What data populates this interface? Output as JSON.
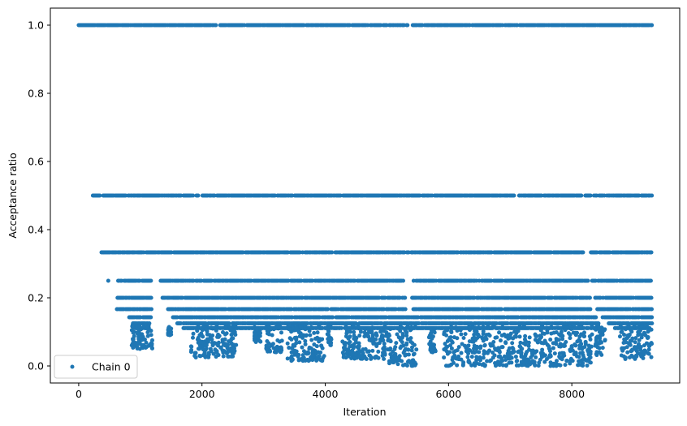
{
  "chart_data": {
    "type": "scatter",
    "xlabel": "Iteration",
    "ylabel": "Acceptance ratio",
    "xlim": [
      -460,
      9750
    ],
    "ylim": [
      -0.05,
      1.05
    ],
    "xticks": [
      0,
      2000,
      4000,
      6000,
      8000
    ],
    "yticks": [
      0.0,
      0.2,
      0.4,
      0.6,
      0.8,
      1.0
    ],
    "xtick_labels": [
      "0",
      "2000",
      "4000",
      "6000",
      "8000"
    ],
    "ytick_labels": [
      "0.0",
      "0.2",
      "0.4",
      "0.6",
      "0.8",
      "1.0"
    ],
    "grid": false,
    "legend_position": "lower-left",
    "series": [
      {
        "name": "Chain 0",
        "color": "#1f77b4",
        "marker": "circle",
        "levels": [
          {
            "y": 1.0,
            "segments": [
              [
                0,
                5340
              ],
              [
                5420,
                9300
              ]
            ]
          },
          {
            "y": 0.5,
            "segments": [
              [
                230,
                8160
              ],
              [
                8220,
                9300
              ]
            ]
          },
          {
            "y": 0.3333,
            "segments": [
              [
                370,
                8200
              ],
              [
                8310,
                9300
              ]
            ]
          },
          {
            "y": 0.25,
            "segments": [
              [
                480,
                480
              ],
              [
                640,
                1180
              ],
              [
                1330,
                5290
              ],
              [
                5420,
                8270
              ],
              [
                8330,
                9300
              ]
            ]
          },
          {
            "y": 0.2,
            "segments": [
              [
                630,
                1180
              ],
              [
                1360,
                5300
              ],
              [
                5410,
                8300
              ],
              [
                8380,
                9300
              ]
            ]
          },
          {
            "y": 0.1667,
            "segments": [
              [
                620,
                1180
              ],
              [
                1450,
                5300
              ],
              [
                5430,
                8300
              ],
              [
                8400,
                9300
              ]
            ]
          },
          {
            "y": 0.1429,
            "segments": [
              [
                820,
                1170
              ],
              [
                1530,
                8400
              ],
              [
                8500,
                9300
              ]
            ]
          },
          {
            "y": 0.125,
            "segments": [
              [
                880,
                1150
              ],
              [
                1600,
                8450
              ],
              [
                8600,
                9300
              ]
            ]
          },
          {
            "y": 0.1111,
            "segments": [
              [
                900,
                1150
              ],
              [
                1700,
                8500
              ],
              [
                8700,
                9300
              ]
            ]
          }
        ],
        "clusters": [
          {
            "x": [
              860,
              1200
            ],
            "y": [
              0.05,
              0.12
            ]
          },
          {
            "x": [
              1450,
              1500
            ],
            "y": [
              0.09,
              0.12
            ]
          },
          {
            "x": [
              1820,
              2560
            ],
            "y": [
              0.025,
              0.12
            ]
          },
          {
            "x": [
              2850,
              2950
            ],
            "y": [
              0.07,
              0.12
            ]
          },
          {
            "x": [
              3040,
              3300
            ],
            "y": [
              0.04,
              0.12
            ]
          },
          {
            "x": [
              3380,
              3990
            ],
            "y": [
              0.015,
              0.12
            ]
          },
          {
            "x": [
              4020,
              4100
            ],
            "y": [
              0.06,
              0.12
            ]
          },
          {
            "x": [
              4280,
              5030
            ],
            "y": [
              0.02,
              0.12
            ]
          },
          {
            "x": [
              5030,
              5480
            ],
            "y": [
              0.0,
              0.12
            ]
          },
          {
            "x": [
              5680,
              5800
            ],
            "y": [
              0.04,
              0.12
            ]
          },
          {
            "x": [
              5920,
              8330
            ],
            "y": [
              0.0,
              0.12
            ]
          },
          {
            "x": [
              8380,
              8540
            ],
            "y": [
              0.03,
              0.12
            ]
          },
          {
            "x": [
              8780,
              9300
            ],
            "y": [
              0.02,
              0.12
            ]
          }
        ]
      }
    ]
  }
}
